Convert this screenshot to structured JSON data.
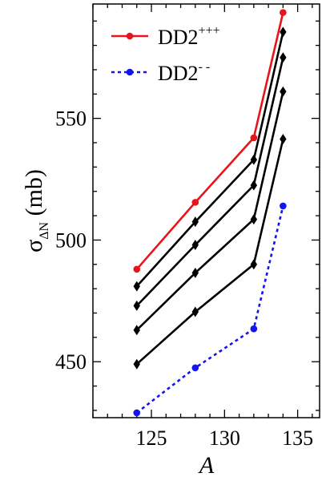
{
  "chart_data": {
    "type": "line",
    "xlabel": "A",
    "ylabel": {
      "symbol": "σ",
      "subscript": "ΔN",
      "unit": " (mb)"
    },
    "xlim": [
      121,
      136.5
    ],
    "ylim": [
      427,
      597
    ],
    "x_ticks": [
      125,
      130,
      135
    ],
    "y_ticks": [
      450,
      500,
      550
    ],
    "x": [
      124,
      128,
      132,
      134
    ],
    "legend_position": "top-left",
    "series": [
      {
        "name": "DD2",
        "sup": "+++",
        "values": [
          488,
          515.5,
          542,
          593.5
        ],
        "color": "#e8141b",
        "style": "solid",
        "marker": "circle",
        "legend": true
      },
      {
        "name": "",
        "values": [
          481,
          507.5,
          533,
          585.5
        ],
        "color": "#000000",
        "style": "solid",
        "marker": "diamond",
        "legend": false
      },
      {
        "name": "",
        "values": [
          473,
          498,
          522.5,
          575
        ],
        "color": "#000000",
        "style": "solid",
        "marker": "diamond",
        "legend": false
      },
      {
        "name": "",
        "values": [
          463,
          486.5,
          508.5,
          561
        ],
        "color": "#000000",
        "style": "solid",
        "marker": "diamond",
        "legend": false
      },
      {
        "name": "",
        "values": [
          449,
          470.5,
          490,
          541.5
        ],
        "color": "#000000",
        "style": "solid",
        "marker": "diamond",
        "legend": false
      },
      {
        "name": "DD2",
        "sup": "- -",
        "values": [
          429,
          447.5,
          463.5,
          514
        ],
        "color": "#1414f0",
        "style": "dotted",
        "marker": "circle",
        "legend": true
      }
    ]
  }
}
